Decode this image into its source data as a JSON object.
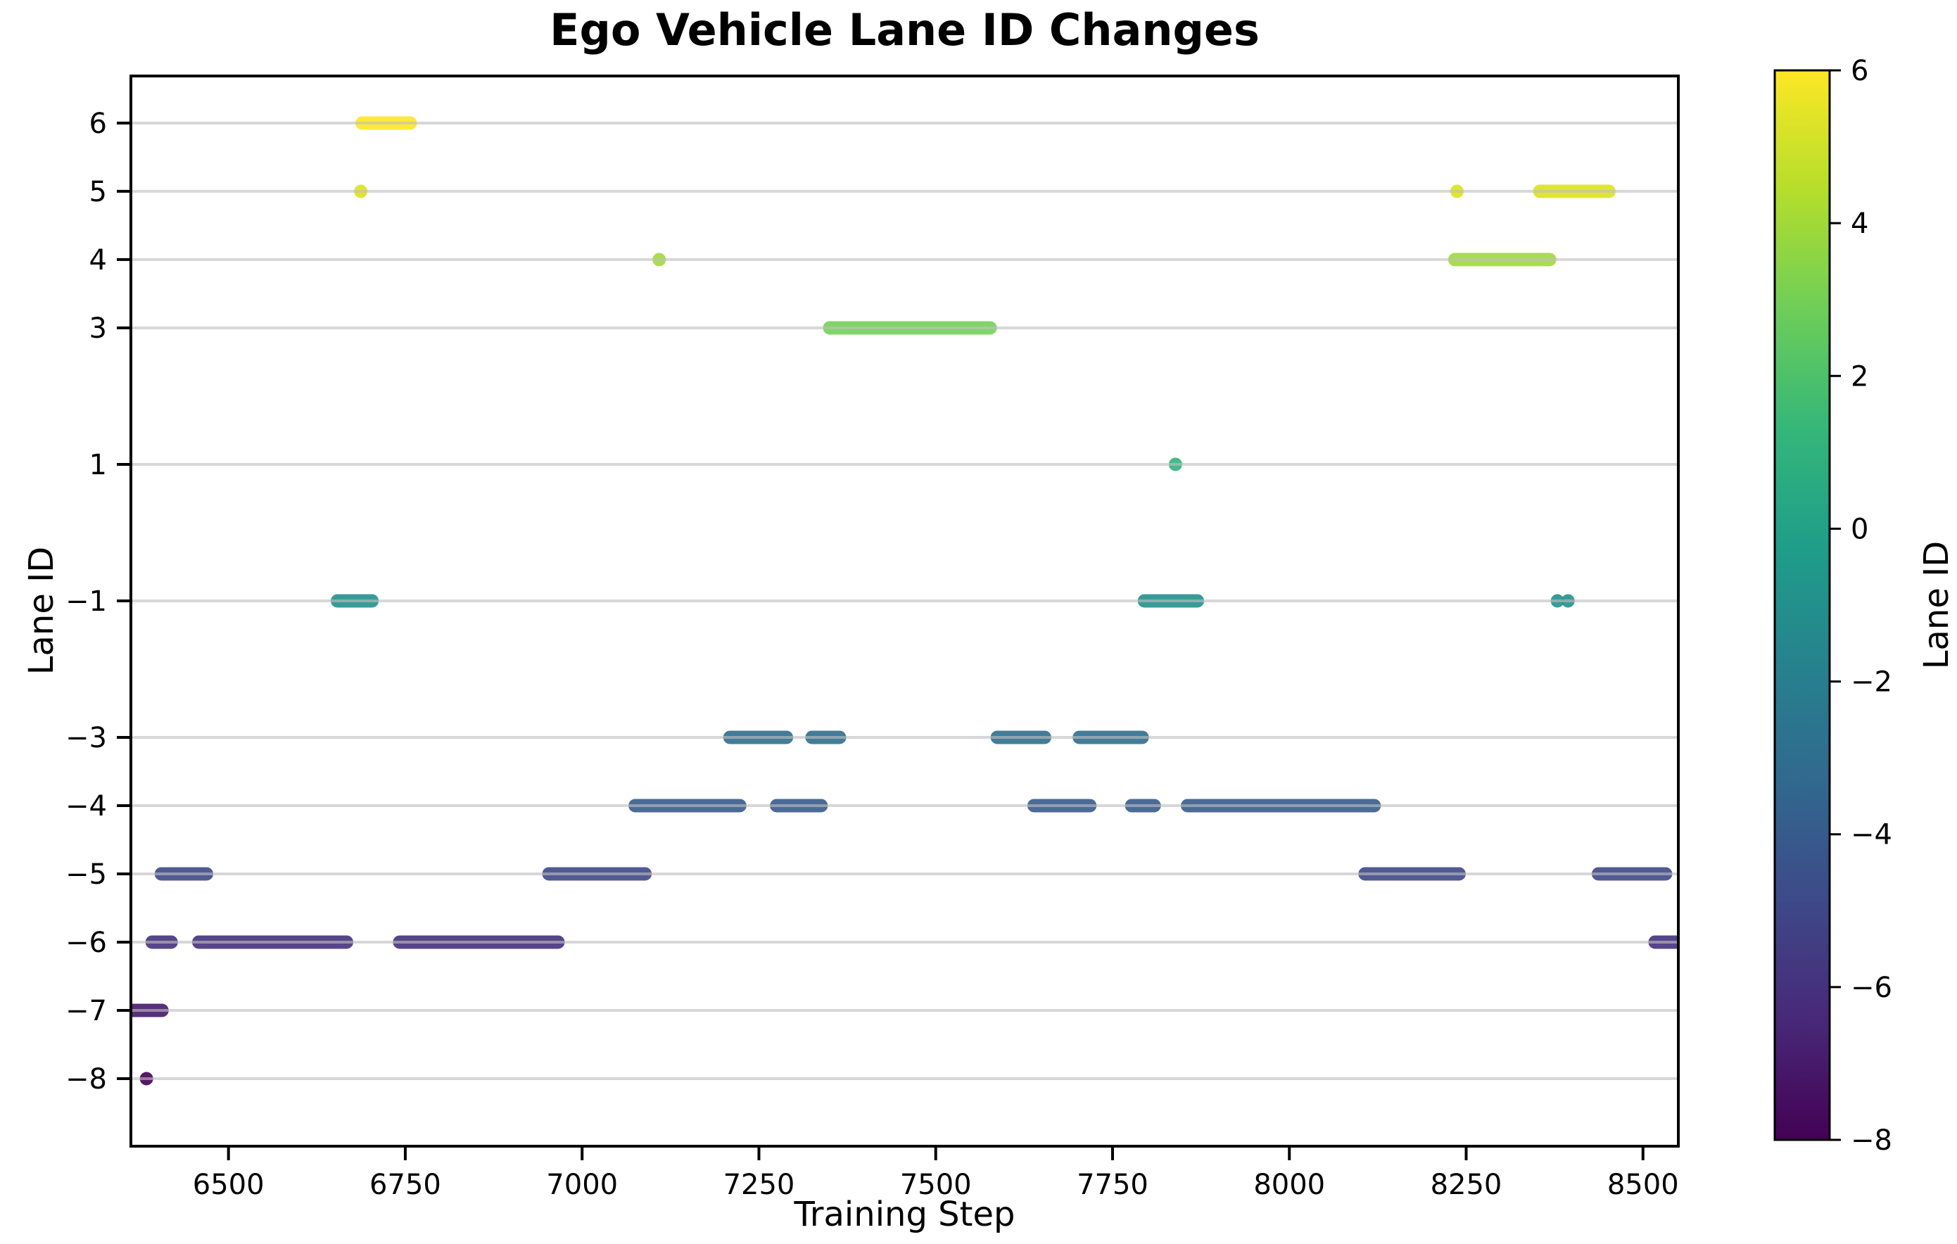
{
  "chart_data": {
    "type": "scatter",
    "title": "Ego Vehicle Lane ID Changes",
    "xlabel": "Training Step",
    "ylabel": "Lane ID",
    "xlim": [
      6362,
      8550
    ],
    "ylim": [
      -8.99,
      6.69
    ],
    "grid": "horizontal gridlines on",
    "legend_position": "none",
    "xticks": [
      6500,
      6750,
      7000,
      7250,
      7500,
      7750,
      8000,
      8250,
      8500
    ],
    "xtick_labels": [
      "6500",
      "6750",
      "7000",
      "7250",
      "7500",
      "7750",
      "8000",
      "8250",
      "8500"
    ],
    "yticks": [
      6,
      5,
      4,
      3,
      1,
      -1,
      -3,
      -4,
      -5,
      -6,
      -7,
      -8
    ],
    "ytick_labels": [
      "6",
      "5",
      "4",
      "3",
      "1",
      "−1",
      "−3",
      "−4",
      "−5",
      "−6",
      "−7",
      "−8"
    ],
    "marker": {
      "thickness_px": 19,
      "dot_radius_px": 9.5,
      "alpha": 0.9
    },
    "colorbar": {
      "label": "Lane ID",
      "vmin": -8,
      "vmax": 6,
      "ticks": [
        6,
        4,
        2,
        0,
        -2,
        -4,
        -6,
        -8
      ],
      "tick_labels": [
        "6",
        "4",
        "2",
        "0",
        "−2",
        "−4",
        "−6",
        "−8"
      ],
      "colormap": "viridis",
      "viridis_stops_top_to_bottom": [
        "#fde725",
        "#b5de2b",
        "#6ece58",
        "#35b779",
        "#1f9e89",
        "#26828e",
        "#31688e",
        "#3e4989",
        "#482878",
        "#440154"
      ]
    },
    "series": [
      {
        "lane": 6,
        "color": "#fde725",
        "runs": [
          [
            6689,
            6757
          ]
        ]
      },
      {
        "lane": 5,
        "color": "#dbe319",
        "runs": [
          [
            6687,
            6687
          ],
          [
            8237,
            8237
          ],
          [
            8354,
            8452
          ]
        ]
      },
      {
        "lane": 4,
        "color": "#a0d93a",
        "runs": [
          [
            7109,
            7109
          ],
          [
            8234,
            8368
          ]
        ]
      },
      {
        "lane": 3,
        "color": "#73d056",
        "runs": [
          [
            7350,
            7577
          ]
        ]
      },
      {
        "lane": 1,
        "color": "#30b27d",
        "runs": [
          [
            7839,
            7839
          ]
        ]
      },
      {
        "lane": -1,
        "color": "#21918c",
        "runs": [
          [
            6654,
            6703
          ],
          [
            7795,
            7870
          ],
          [
            8379,
            8379
          ],
          [
            8394,
            8394
          ]
        ]
      },
      {
        "lane": -3,
        "color": "#2f6e8e",
        "runs": [
          [
            7209,
            7289
          ],
          [
            7325,
            7364
          ],
          [
            7587,
            7654
          ],
          [
            7703,
            7792
          ]
        ]
      },
      {
        "lane": -4,
        "color": "#375b8c",
        "runs": [
          [
            7075,
            7223
          ],
          [
            7275,
            7338
          ],
          [
            7639,
            7718
          ],
          [
            7777,
            7809
          ],
          [
            7856,
            8120
          ]
        ]
      },
      {
        "lane": -5,
        "color": "#3f4888",
        "runs": [
          [
            6405,
            6469
          ],
          [
            6953,
            7089
          ],
          [
            8107,
            8240
          ],
          [
            8437,
            8532
          ]
        ]
      },
      {
        "lane": -6,
        "color": "#45317d",
        "runs": [
          [
            6392,
            6419
          ],
          [
            6458,
            6667
          ],
          [
            6742,
            6966
          ],
          [
            8517,
            8552
          ]
        ]
      },
      {
        "lane": -7,
        "color": "#46196b",
        "runs": [
          [
            6350,
            6406
          ]
        ]
      },
      {
        "lane": -8,
        "color": "#440154",
        "runs": [
          [
            6384,
            6384
          ]
        ]
      }
    ]
  }
}
